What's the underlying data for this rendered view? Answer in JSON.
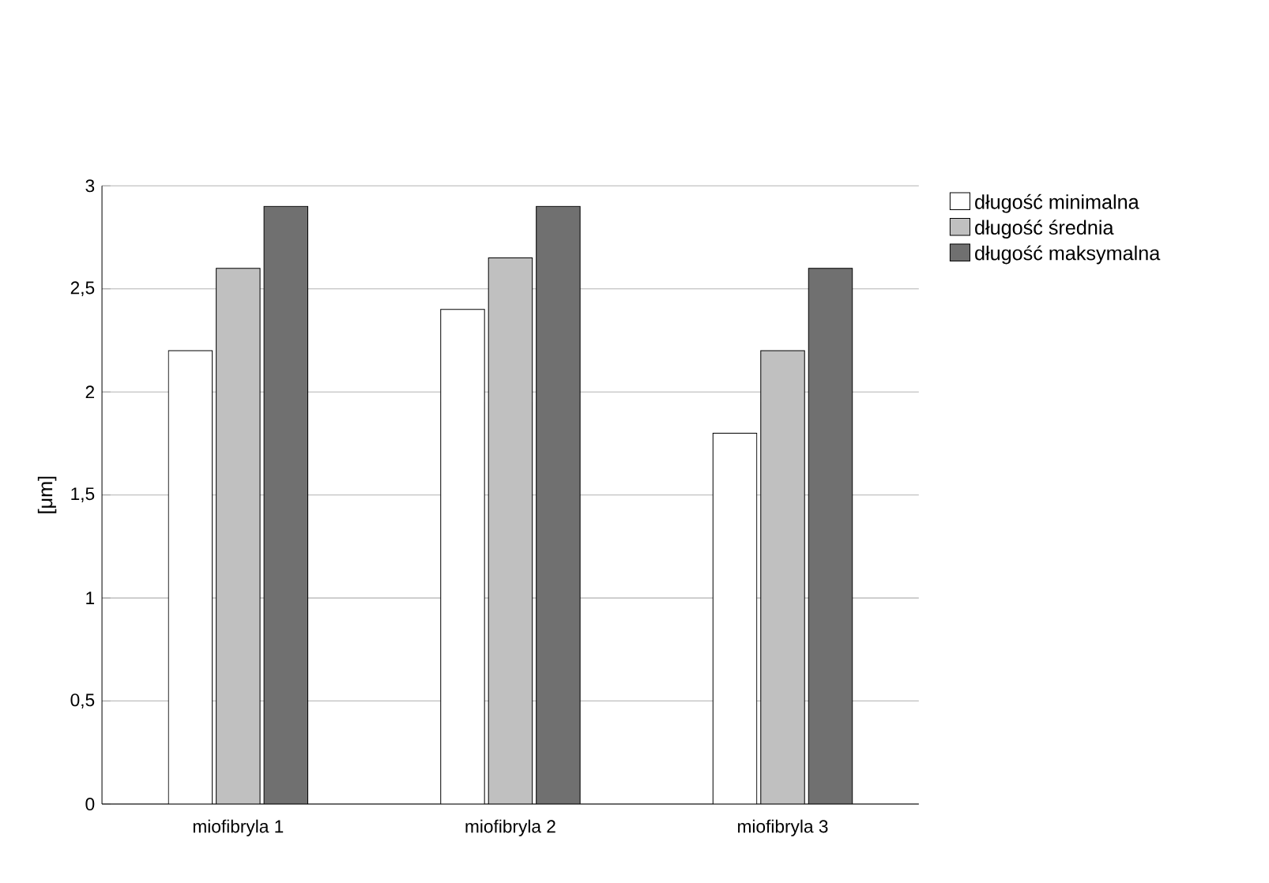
{
  "chart_data": {
    "type": "bar",
    "ylabel": "[μm]",
    "categories": [
      "miofibryla 1",
      "miofibryla 2",
      "miofibryla 3"
    ],
    "series": [
      {
        "name": "długość minimalna",
        "color": "#ffffff",
        "values": [
          2.2,
          2.4,
          1.8
        ]
      },
      {
        "name": "długość średnia",
        "color": "#c0c0c0",
        "values": [
          2.6,
          2.65,
          2.2
        ]
      },
      {
        "name": "długość maksymalna",
        "color": "#707070",
        "values": [
          2.9,
          2.9,
          2.6
        ]
      }
    ],
    "ylim": [
      0,
      3
    ],
    "yticks": [
      0,
      {
        "value": 0.5,
        "label": "0,5"
      },
      1,
      {
        "value": 1.5,
        "label": "1,5"
      },
      2,
      {
        "value": 2.5,
        "label": "2,5"
      },
      3
    ],
    "grid": "y",
    "legend": "right"
  }
}
